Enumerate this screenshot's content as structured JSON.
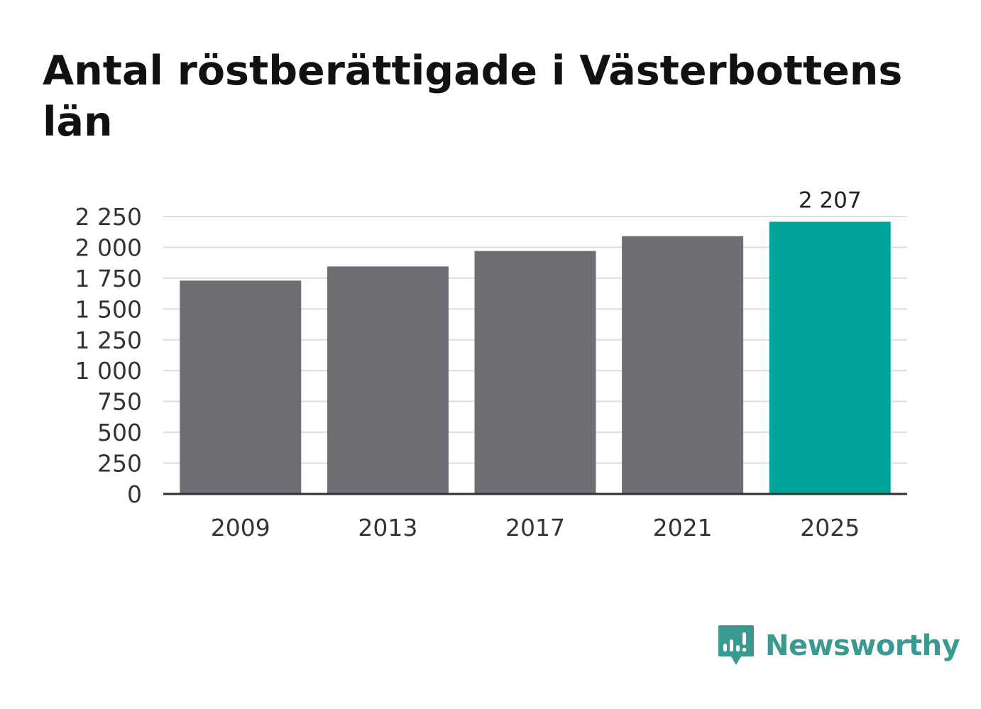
{
  "title": "Antal röstberättigade i Västerbottens län",
  "brand": {
    "name": "Newsworthy",
    "color": "#3a9a92",
    "icon": "chart-speech-bubble-icon"
  },
  "colors": {
    "bar_default": "#6f6e74",
    "bar_highlight": "#00a49a",
    "grid": "#dedede",
    "axis": "#333333"
  },
  "chart_data": {
    "type": "bar",
    "title": "Antal röstberättigade i Västerbottens län",
    "categories": [
      "2009",
      "2013",
      "2017",
      "2021",
      "2025"
    ],
    "values": [
      1730,
      1845,
      1970,
      2090,
      2207
    ],
    "highlight_index": 4,
    "data_labels": [
      {
        "index": 4,
        "text": "2 207"
      }
    ],
    "ylim": [
      0,
      2250
    ],
    "yticks": [
      0,
      250,
      500,
      750,
      1000,
      1250,
      1500,
      1750,
      2000,
      2250
    ],
    "ytick_labels": [
      "0",
      "250",
      "500",
      "750",
      "1 000",
      "1 250",
      "1 500",
      "1 750",
      "2 000",
      "2 250"
    ],
    "grid": true,
    "legend": "none"
  }
}
